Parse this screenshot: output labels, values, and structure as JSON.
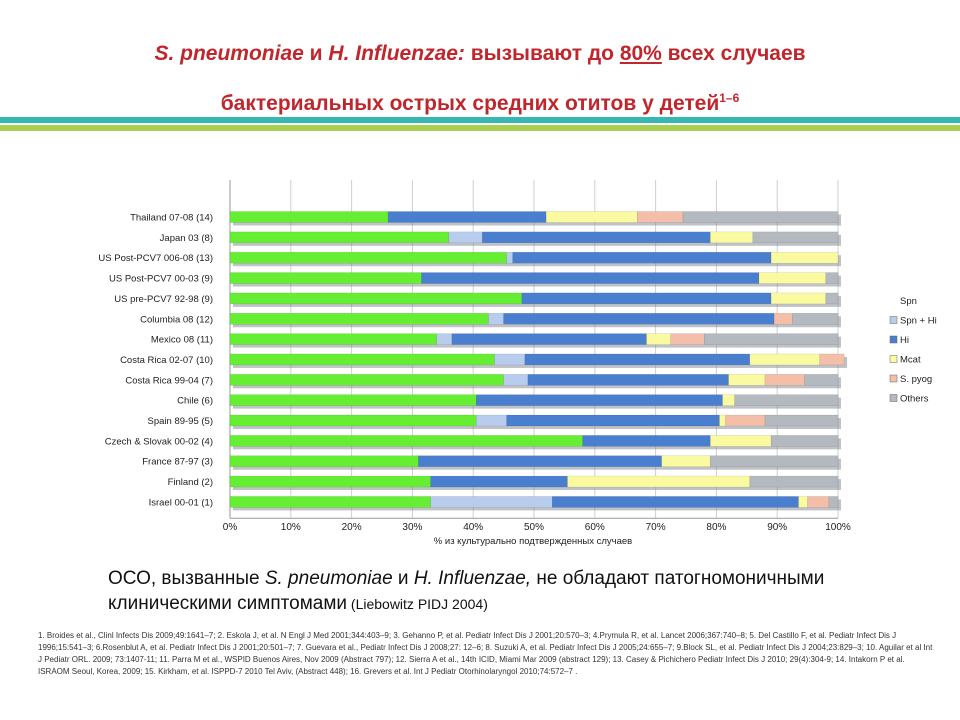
{
  "title": {
    "line1_a": "S. pneumoniae",
    "line1_b": " и ",
    "line1_c": "H. Influenzae:",
    "line1_d": " вызывают до ",
    "line1_e": "80%",
    "line1_f": "  всех случаев",
    "line2": "бактериальных острых средних отитов у детей",
    "line2_sup": "1–6"
  },
  "colors": {
    "title": "#c0272d",
    "band_top": "#35b8b0",
    "band_bottom": "#a8d050",
    "Spn": "#66ee33",
    "Spn + Hi": "#b8ccee",
    "Hi": "#4a7fd0",
    "Mcat": "#fafaa0",
    "S. pyog": "#f4bfa8",
    "Others": "#b4b9bf"
  },
  "chart_data": {
    "type": "bar",
    "orientation": "horizontal",
    "stacked": true,
    "categories": [
      "Thailand 07-08 (14)",
      "Japan 03  (8)",
      "US Post-PCV7 006-08 (13)",
      "US Post-PCV7 00-03 (9)",
      "US pre-PCV7 92-98 (9)",
      "Columbia 08 (12)",
      "Mexico 08 (11)",
      "Costa Rica 02-07 (10)",
      "Costa Rica 99-04 (7)",
      "Chile (6)",
      "Spain 89-95 (5)",
      "Czech & Slovak 00-02 (4)",
      "France 87-97 (3)",
      "Finland (2)",
      "Israel 00-01 (1)"
    ],
    "series": [
      {
        "name": "Spn",
        "values": [
          26,
          36,
          45.5,
          31.5,
          48,
          42.5,
          34,
          43.5,
          45,
          40.5,
          40.5,
          58,
          31,
          33,
          33
        ]
      },
      {
        "name": "Spn + Hi",
        "values": [
          0,
          5.5,
          1,
          0,
          0,
          2.5,
          2.5,
          5,
          4,
          0,
          5,
          0,
          0,
          0,
          20
        ]
      },
      {
        "name": "Hi",
        "values": [
          26,
          37.5,
          42.5,
          55.5,
          41,
          44.5,
          32,
          37,
          33,
          40.5,
          35,
          21,
          40,
          22.5,
          40.5
        ]
      },
      {
        "name": "Mcat",
        "values": [
          15,
          7,
          11,
          11,
          9,
          0,
          4,
          11.5,
          6,
          2,
          1,
          10,
          8,
          30,
          1.5
        ]
      },
      {
        "name": "S. pyog",
        "values": [
          7.5,
          0,
          0,
          0,
          0,
          3,
          5.5,
          4,
          6.5,
          0,
          6.5,
          0,
          0,
          0,
          3.5
        ]
      },
      {
        "name": "Others",
        "values": [
          25.5,
          14,
          0,
          2,
          2,
          7.5,
          22,
          0,
          5.5,
          17,
          12,
          11,
          21,
          14.5,
          1.5
        ]
      }
    ],
    "xlim": [
      0,
      100
    ],
    "xticks": [
      "0%",
      "10%",
      "20%",
      "30%",
      "40%",
      "50%",
      "60%",
      "70%",
      "80%",
      "90%",
      "100%"
    ],
    "xlabel": "% из культурально подтвержденных случаев",
    "legend": [
      "Spn",
      "Spn + Hi",
      "Hi",
      "Mcat",
      "S. pyog",
      "Others"
    ],
    "legend_position": "right",
    "grid": true
  },
  "subtitle": {
    "a": "ОСО, вызванные ",
    "b": "S. pneumoniae",
    "c": " и ",
    "d": "H. Influenzae,",
    "e": " не обладают патогномоничными клиническими симптомами",
    "f": " (Liebowitz PIDJ 2004)"
  },
  "references": "1. Broides et al., Clinl Infects Dis 2009;49:1641–7; 2. Eskola J, et al. N Engl J Med 2001;344:403–9; 3. Gehanno P, et al. Pediatr Infect Dis J 2001;20:570–3; 4.Prymula R, et al. Lancet 2006;367:740–8; 5. Del Castillo F, et al. Pediatr Infect Dis J 1996;15:541–3; 6.Rosenblut A, et al. Pediatr Infect Dis J 2001;20:501–7; 7. Guevara et al., Pediatr Infect Dis J 2008;27: 12–6; 8. Suzuki A, et al. Pediatr Infect Dis J 2005;24:655–7; 9.Block SL, et al. Pediatr Infect Dis J 2004;23:829–3; 10. Aguilar et al Int J Pediatr ORL. 2009; 73:1407-11; 11. Parra M et al., WSPID Buenos Aires, Nov 2009 (Abstract 797); 12. Sierra A et al., 14th ICID, Miami Mar 2009 (abstract 129); 13. Casey & Pichichero Pediatr Infect Dis J 2010; 29(4):304-9; 14. Intakorn P et al. ISRAOM Seoul, Korea, 2009; 15. Kirkham, et al. ISPPD-7 2010 Tel Aviv, (Abstract 448); 16. Grevers et al. Int J Pediatr Otorhinolaryngol 2010;74:572–7 ."
}
